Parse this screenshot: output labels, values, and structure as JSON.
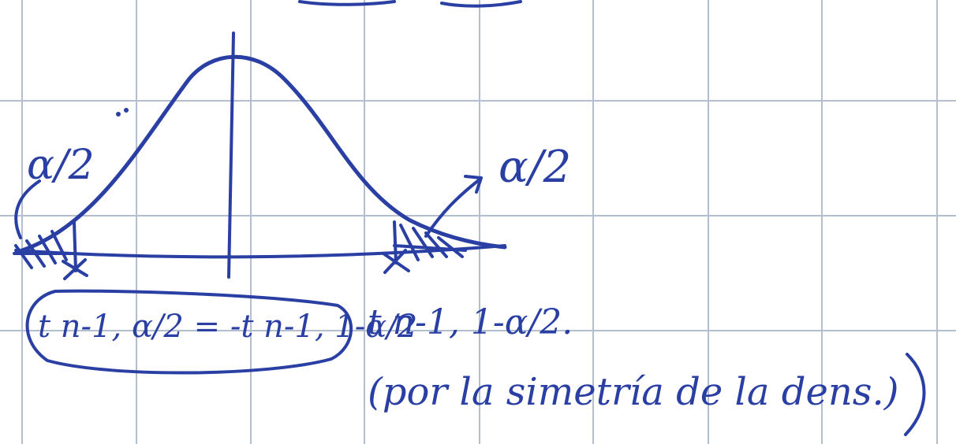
{
  "colors": {
    "ink": "#2a3fa3",
    "grid": "#b3bfd0",
    "paper": "#ffffff"
  },
  "labels": {
    "left_tail": "α/2",
    "right_tail": "α/2",
    "left_quantile": "t n-1, α/2 = -t n-1, 1-α/2",
    "right_quantile": "t n-1, 1-α/2.",
    "note": "(por la simetría de la dens.)"
  }
}
